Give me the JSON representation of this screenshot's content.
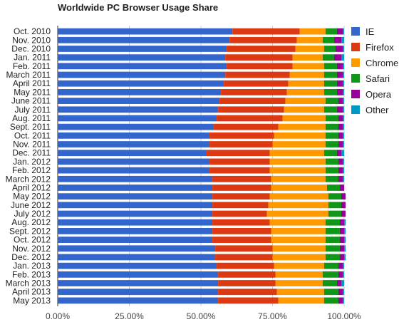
{
  "chart_data": {
    "type": "bar",
    "orientation": "horizontal",
    "stacked": true,
    "title": "Worldwide PC Browser Usage Share",
    "xlim": [
      0,
      100
    ],
    "x_ticks": [
      "0.00%",
      "25.00%",
      "50.00%",
      "75.00%",
      "100.00%"
    ],
    "grid": true,
    "legend_position": "right",
    "categories": [
      "Oct. 2010",
      "Nov. 2010",
      "Dec. 2010",
      "Jan. 2011",
      "Feb. 2011",
      "March 2011",
      "April 2011",
      "May 2011",
      "June 2011",
      "July 2011",
      "Aug. 2011",
      "Sept. 2011",
      "Oct. 2011",
      "Nov. 2011",
      "Dec. 2011",
      "Jan. 2012",
      "Feb. 2012",
      "March 2012",
      "April 2012",
      "May 2012",
      "June 2012",
      "July 2012",
      "Aug. 2012",
      "Sept. 2012",
      "Oct. 2012",
      "Nov. 2012",
      "Dec. 2012",
      "Jan. 2013",
      "Feb. 2013",
      "March 2013",
      "April 2013",
      "May 2013"
    ],
    "series": [
      {
        "name": "IE",
        "color": "#3366cc",
        "values": [
          61,
          60,
          59,
          58.5,
          59,
          58.5,
          58,
          57,
          56.5,
          56,
          55.5,
          54.5,
          53,
          53,
          52,
          53,
          53,
          54,
          54,
          54,
          54,
          54,
          54,
          54,
          54,
          55,
          55,
          55.5,
          56,
          56,
          56,
          56
        ]
      },
      {
        "name": "Firefox",
        "color": "#dc3912",
        "values": [
          23.5,
          23.5,
          24,
          23.5,
          23,
          22.5,
          22.5,
          23,
          23,
          23,
          23,
          22.5,
          22.5,
          22,
          22,
          21,
          21,
          20.5,
          20.5,
          20,
          19.5,
          19,
          20,
          20.5,
          20.5,
          20,
          20,
          20,
          20,
          20,
          20.5,
          21
        ]
      },
      {
        "name": "Chrome",
        "color": "#ff9900",
        "values": [
          9,
          9,
          10,
          10.5,
          11,
          12,
          12.5,
          13,
          14,
          14,
          15,
          16.5,
          18,
          18.5,
          19,
          19.5,
          19.5,
          19,
          19.5,
          20.5,
          21,
          21.5,
          19.5,
          19,
          19,
          18.5,
          18.5,
          17.5,
          16.5,
          16.5,
          16.5,
          16
        ]
      },
      {
        "name": "Safari",
        "color": "#109618",
        "values": [
          4,
          4,
          4,
          4,
          4.5,
          4.5,
          4.5,
          4.5,
          4.5,
          4.5,
          4.5,
          4.5,
          4.5,
          4.5,
          4.5,
          4.5,
          4.5,
          4.5,
          4.5,
          4.5,
          4.5,
          4.5,
          5,
          5,
          5,
          5,
          5,
          5,
          5.5,
          5,
          5,
          5
        ]
      },
      {
        "name": "Opera",
        "color": "#990099",
        "values": [
          2,
          2.5,
          2.5,
          2.5,
          2,
          2,
          2,
          2,
          1.5,
          2,
          1.5,
          1.5,
          1.5,
          1.5,
          1.5,
          1.5,
          1.5,
          1.5,
          1.5,
          1.5,
          1.5,
          1.5,
          1.5,
          1.5,
          1.5,
          1.5,
          1.5,
          1.5,
          1.5,
          1.5,
          1.5,
          1.5
        ]
      },
      {
        "name": "Other",
        "color": "#0099c6",
        "values": [
          0.5,
          1,
          0.5,
          1,
          0.5,
          0.5,
          0.5,
          0.5,
          0.5,
          0.5,
          0.5,
          0.5,
          0.5,
          0.5,
          1,
          0.5,
          0.5,
          0.5,
          0,
          0,
          0,
          0,
          0.5,
          0.5,
          0.5,
          0.5,
          0.5,
          0.5,
          0.5,
          1,
          0.5,
          0.5
        ]
      }
    ]
  }
}
